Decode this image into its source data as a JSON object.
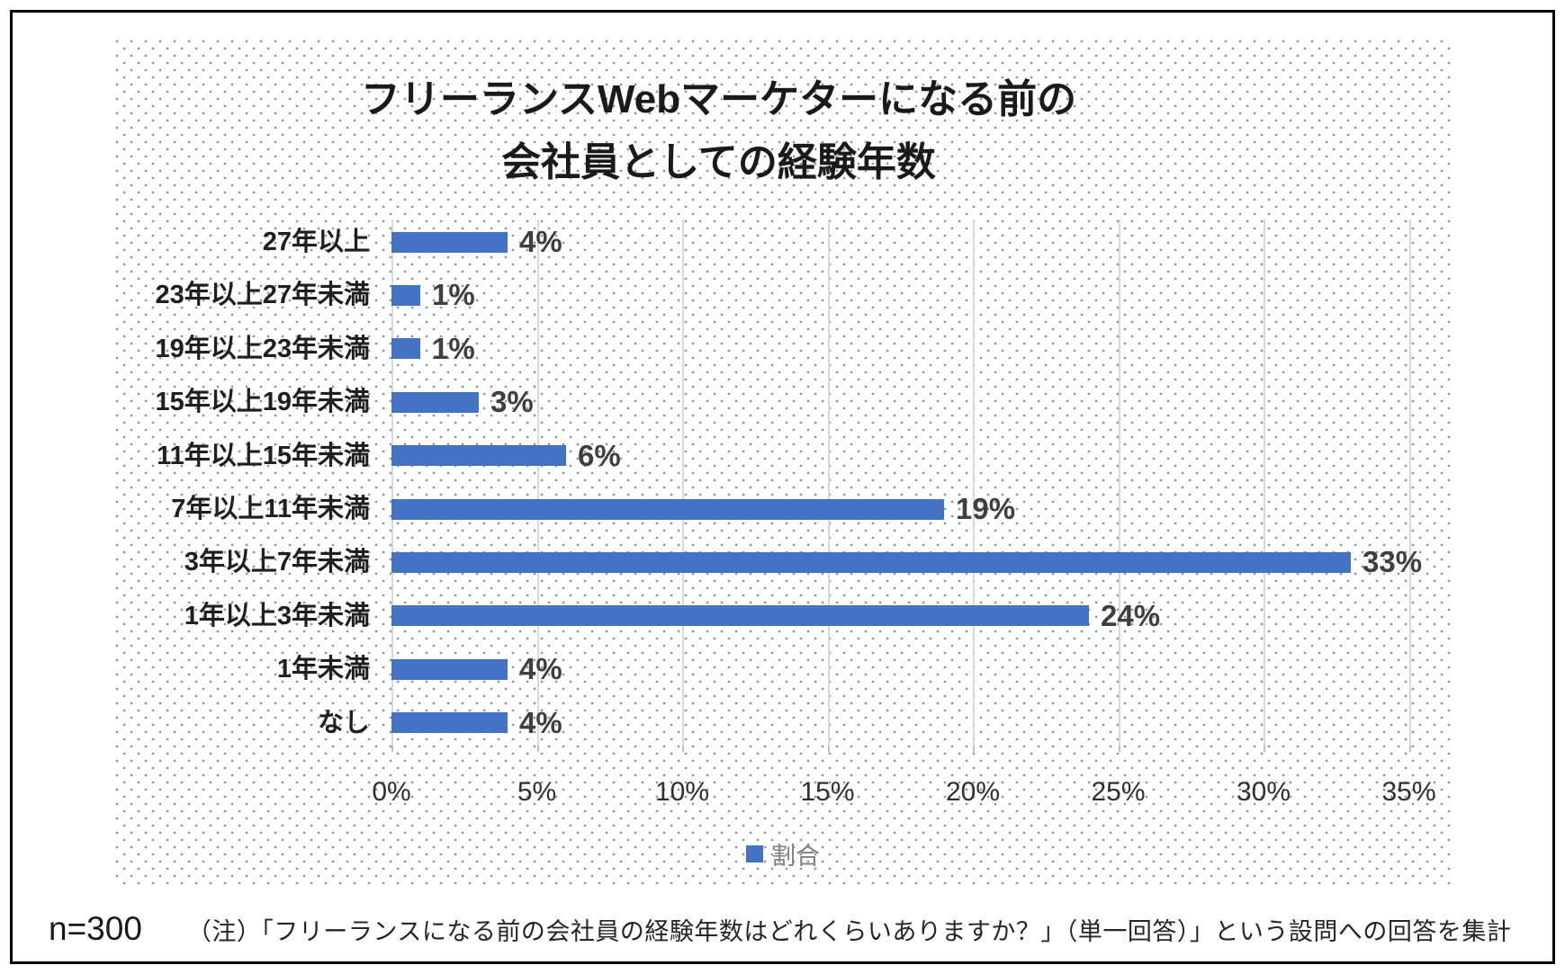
{
  "title": {
    "line1": "フリーランスWebマーケターになる前の",
    "line2": "会社員としての経験年数"
  },
  "chart_data": {
    "type": "bar",
    "orientation": "horizontal",
    "categories": [
      "27年以上",
      "23年以上27年未満",
      "19年以上23年未満",
      "15年以上19年未満",
      "11年以上15年未満",
      "7年以上11年未満",
      "3年以上7年未満",
      "1年以上3年未満",
      "1年未満",
      "なし"
    ],
    "values": [
      4,
      1,
      1,
      3,
      6,
      19,
      33,
      24,
      4,
      4
    ],
    "value_labels": [
      "4%",
      "1%",
      "1%",
      "3%",
      "6%",
      "19%",
      "33%",
      "24%",
      "4%",
      "4%"
    ],
    "xlim": [
      0,
      35
    ],
    "x_tick_step": 5,
    "x_ticks": [
      "0%",
      "5%",
      "10%",
      "15%",
      "20%",
      "25%",
      "30%",
      "35%"
    ],
    "grid": true,
    "bar_color": "#4472C4",
    "gridline_color": "#d9d9d9",
    "legend": {
      "position": "bottom",
      "label": "割合",
      "swatch_color": "#4472C4"
    }
  },
  "footer": {
    "sample_size": "n=300",
    "note": "（注）「フリーランスになる前の会社員の経験年数はどれくらいありますか？」（単一回答）」という設問への回答を集計"
  }
}
